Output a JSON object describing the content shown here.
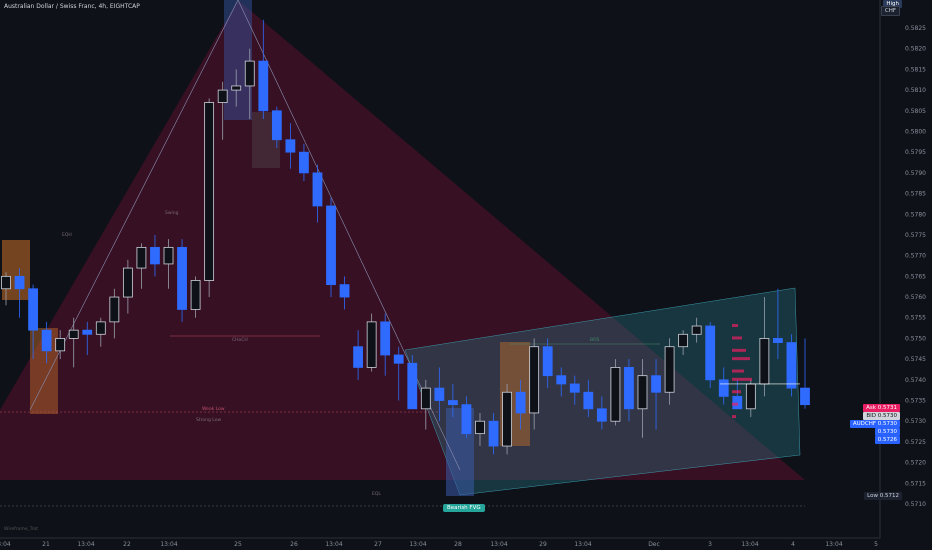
{
  "header": {
    "title": "Australian Dollar / Swiss Franc, 4h, EIGHTCAP"
  },
  "axis_tags": {
    "high": "High",
    "currency": "CHF",
    "low": "Low",
    "low_value": "0.5712",
    "ask": "Ask",
    "ask_value": "0.5731",
    "price": "BID",
    "price_value": "0.5730",
    "bid": "AUDCHF",
    "bid_value": "0.5730",
    "line1": "0.5730",
    "line2": "0.5726"
  },
  "annotations": {
    "bos_pill": "Bearish FVG",
    "eqh_label": "EQH",
    "eql_label": "EQL",
    "swing_label": "Swing",
    "ch_label": "CHoCH",
    "weak_low": "Weak Low",
    "strong_low": "Strong Low",
    "bos_label": "BOS",
    "watermark": "Wireframe_Trot"
  },
  "chart_data": {
    "type": "candlestick",
    "title": "Australian Dollar / Swiss Franc, 4h, EIGHTCAP",
    "ylim": [
      0.5705,
      0.583
    ],
    "y_ticks": [
      "0.5825",
      "0.5820",
      "0.5815",
      "0.5810",
      "0.5805",
      "0.5800",
      "0.5795",
      "0.5790",
      "0.5785",
      "0.5780",
      "0.5775",
      "0.5770",
      "0.5765",
      "0.5760",
      "0.5755",
      "0.5750",
      "0.5745",
      "0.5740",
      "0.5735",
      "0.5730",
      "0.5725",
      "0.5720",
      "0.5715",
      "0.5710"
    ],
    "x_ticks": [
      "3:04",
      "21",
      "13:04",
      "22",
      "13:04",
      "25",
      "26",
      "13:04",
      "27",
      "13:04",
      "28",
      "13:04",
      "29",
      "13:04",
      "Dec",
      "3",
      "13:04",
      "4",
      "13:04",
      "5"
    ],
    "colors": {
      "up": "#e8ecf4",
      "down": "#2f6bff",
      "zone_red": "#6b1030",
      "zone_teal": "#1a6a7a"
    },
    "candles": [
      {
        "o": 0.5762,
        "h": 0.5766,
        "l": 0.5758,
        "c": 0.5765
      },
      {
        "o": 0.5765,
        "h": 0.5767,
        "l": 0.5755,
        "c": 0.5762
      },
      {
        "o": 0.5762,
        "h": 0.5763,
        "l": 0.5745,
        "c": 0.5752
      },
      {
        "o": 0.5752,
        "h": 0.5754,
        "l": 0.5744,
        "c": 0.5747
      },
      {
        "o": 0.5747,
        "h": 0.5752,
        "l": 0.5745,
        "c": 0.575
      },
      {
        "o": 0.575,
        "h": 0.5755,
        "l": 0.5743,
        "c": 0.5752
      },
      {
        "o": 0.5752,
        "h": 0.5754,
        "l": 0.5746,
        "c": 0.5751
      },
      {
        "o": 0.5751,
        "h": 0.5755,
        "l": 0.5748,
        "c": 0.5754
      },
      {
        "o": 0.5754,
        "h": 0.5762,
        "l": 0.575,
        "c": 0.576
      },
      {
        "o": 0.576,
        "h": 0.5769,
        "l": 0.5756,
        "c": 0.5767
      },
      {
        "o": 0.5767,
        "h": 0.5773,
        "l": 0.5762,
        "c": 0.5772
      },
      {
        "o": 0.5772,
        "h": 0.5775,
        "l": 0.5765,
        "c": 0.5768
      },
      {
        "o": 0.5768,
        "h": 0.5774,
        "l": 0.5762,
        "c": 0.5772
      },
      {
        "o": 0.5772,
        "h": 0.5774,
        "l": 0.5754,
        "c": 0.5757
      },
      {
        "o": 0.5757,
        "h": 0.5765,
        "l": 0.5755,
        "c": 0.5764
      },
      {
        "o": 0.5764,
        "h": 0.5808,
        "l": 0.576,
        "c": 0.5807
      },
      {
        "o": 0.5807,
        "h": 0.5812,
        "l": 0.5798,
        "c": 0.581
      },
      {
        "o": 0.581,
        "h": 0.5815,
        "l": 0.5806,
        "c": 0.5811
      },
      {
        "o": 0.5811,
        "h": 0.582,
        "l": 0.5803,
        "c": 0.5817
      },
      {
        "o": 0.5817,
        "h": 0.5827,
        "l": 0.5803,
        "c": 0.5805
      },
      {
        "o": 0.5805,
        "h": 0.5806,
        "l": 0.5796,
        "c": 0.5798
      },
      {
        "o": 0.5798,
        "h": 0.5802,
        "l": 0.5791,
        "c": 0.5795
      },
      {
        "o": 0.5795,
        "h": 0.5797,
        "l": 0.5788,
        "c": 0.579
      },
      {
        "o": 0.579,
        "h": 0.5792,
        "l": 0.5778,
        "c": 0.5782
      },
      {
        "o": 0.5782,
        "h": 0.5784,
        "l": 0.576,
        "c": 0.5763
      },
      {
        "o": 0.5763,
        "h": 0.5765,
        "l": 0.5757,
        "c": 0.576
      },
      {
        "o": 0.5748,
        "h": 0.5752,
        "l": 0.574,
        "c": 0.5743
      },
      {
        "o": 0.5743,
        "h": 0.5756,
        "l": 0.5742,
        "c": 0.5754
      },
      {
        "o": 0.5754,
        "h": 0.5756,
        "l": 0.5741,
        "c": 0.5746
      },
      {
        "o": 0.5746,
        "h": 0.5748,
        "l": 0.5735,
        "c": 0.5744
      },
      {
        "o": 0.5744,
        "h": 0.5746,
        "l": 0.5733,
        "c": 0.5733
      },
      {
        "o": 0.5733,
        "h": 0.574,
        "l": 0.5728,
        "c": 0.5738
      },
      {
        "o": 0.5738,
        "h": 0.5743,
        "l": 0.573,
        "c": 0.5735
      },
      {
        "o": 0.5735,
        "h": 0.5739,
        "l": 0.5731,
        "c": 0.5734
      },
      {
        "o": 0.5734,
        "h": 0.5736,
        "l": 0.5726,
        "c": 0.5727
      },
      {
        "o": 0.5727,
        "h": 0.5732,
        "l": 0.5724,
        "c": 0.573
      },
      {
        "o": 0.573,
        "h": 0.5732,
        "l": 0.5722,
        "c": 0.5724
      },
      {
        "o": 0.5724,
        "h": 0.5739,
        "l": 0.5722,
        "c": 0.5737
      },
      {
        "o": 0.5737,
        "h": 0.574,
        "l": 0.5728,
        "c": 0.5732
      },
      {
        "o": 0.5732,
        "h": 0.575,
        "l": 0.5728,
        "c": 0.5748
      },
      {
        "o": 0.5748,
        "h": 0.575,
        "l": 0.5738,
        "c": 0.5741
      },
      {
        "o": 0.5741,
        "h": 0.5743,
        "l": 0.5736,
        "c": 0.5739
      },
      {
        "o": 0.5739,
        "h": 0.5741,
        "l": 0.5734,
        "c": 0.5737
      },
      {
        "o": 0.5737,
        "h": 0.574,
        "l": 0.5731,
        "c": 0.5733
      },
      {
        "o": 0.5733,
        "h": 0.5736,
        "l": 0.5728,
        "c": 0.573
      },
      {
        "o": 0.573,
        "h": 0.5745,
        "l": 0.5729,
        "c": 0.5743
      },
      {
        "o": 0.5743,
        "h": 0.5745,
        "l": 0.573,
        "c": 0.5733
      },
      {
        "o": 0.5733,
        "h": 0.5745,
        "l": 0.5726,
        "c": 0.5741
      },
      {
        "o": 0.5741,
        "h": 0.5745,
        "l": 0.5728,
        "c": 0.5737
      },
      {
        "o": 0.5737,
        "h": 0.575,
        "l": 0.5734,
        "c": 0.5748
      },
      {
        "o": 0.5748,
        "h": 0.5752,
        "l": 0.5746,
        "c": 0.5751
      },
      {
        "o": 0.5751,
        "h": 0.5755,
        "l": 0.5749,
        "c": 0.5753
      },
      {
        "o": 0.5753,
        "h": 0.5754,
        "l": 0.5738,
        "c": 0.574
      },
      {
        "o": 0.574,
        "h": 0.5743,
        "l": 0.5734,
        "c": 0.5736
      },
      {
        "o": 0.5736,
        "h": 0.574,
        "l": 0.5733,
        "c": 0.5733
      },
      {
        "o": 0.5733,
        "h": 0.574,
        "l": 0.5731,
        "c": 0.5739
      },
      {
        "o": 0.5739,
        "h": 0.576,
        "l": 0.5736,
        "c": 0.575
      },
      {
        "o": 0.575,
        "h": 0.5762,
        "l": 0.5745,
        "c": 0.5749
      },
      {
        "o": 0.5749,
        "h": 0.5751,
        "l": 0.5736,
        "c": 0.5738
      },
      {
        "o": 0.5738,
        "h": 0.575,
        "l": 0.5733,
        "c": 0.5734
      }
    ]
  }
}
